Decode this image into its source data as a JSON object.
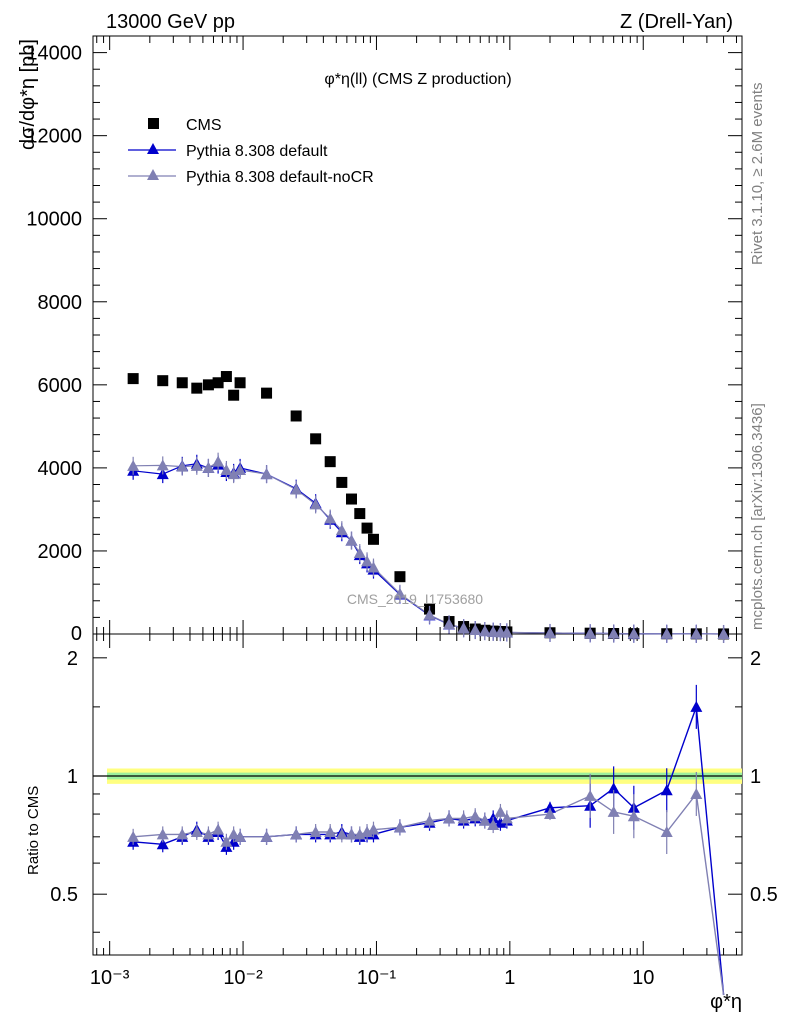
{
  "header": {
    "energy_label": "13000 GeV pp",
    "process_label": "Z (Drell-Yan)"
  },
  "side_text": {
    "rivet": "Rivet 3.1.10, ≥ 2.6M events",
    "mcplots": "mcplots.cern.ch [arXiv:1306.3436]"
  },
  "chart_data": [
    {
      "type": "scatter",
      "title": "φ*η(ll) (CMS Z production)",
      "watermark": "CMS_2019_I1753680",
      "ylabel": "dσ/dφ*η [pb]",
      "xscale": "log",
      "xlim": [
        0.00075,
        55
      ],
      "ylim": [
        0,
        14400
      ],
      "yticks": [
        "2000",
        "4000",
        "6000",
        "8000",
        "10000",
        "12000",
        "14000"
      ],
      "legend_position": "top-left",
      "series": [
        {
          "name": "CMS",
          "color": "#000000",
          "marker": "square",
          "points": [
            [
              0.0015,
              6150
            ],
            [
              0.0025,
              6100
            ],
            [
              0.0035,
              6050
            ],
            [
              0.0045,
              5920
            ],
            [
              0.0055,
              6000
            ],
            [
              0.0065,
              6050
            ],
            [
              0.0075,
              6200
            ],
            [
              0.0085,
              5750
            ],
            [
              0.0095,
              6050
            ],
            [
              0.015,
              5800
            ],
            [
              0.025,
              5250
            ],
            [
              0.035,
              4700
            ],
            [
              0.045,
              4150
            ],
            [
              0.055,
              3650
            ],
            [
              0.065,
              3250
            ],
            [
              0.075,
              2900
            ],
            [
              0.085,
              2550
            ],
            [
              0.095,
              2280
            ],
            [
              0.15,
              1380
            ],
            [
              0.25,
              600
            ],
            [
              0.35,
              300
            ],
            [
              0.45,
              180
            ],
            [
              0.55,
              120
            ],
            [
              0.65,
              90
            ],
            [
              0.75,
              70
            ],
            [
              0.85,
              60
            ],
            [
              0.95,
              50
            ],
            [
              2.0,
              30
            ],
            [
              4.0,
              20
            ],
            [
              6.0,
              12
            ],
            [
              8.5,
              9
            ],
            [
              15,
              6
            ],
            [
              25,
              4
            ],
            [
              40,
              2
            ]
          ]
        },
        {
          "name": "Pythia 8.308 default",
          "color": "#0000cc",
          "marker": "triangle",
          "points": [
            [
              0.0015,
              3930
            ],
            [
              0.0025,
              3850
            ],
            [
              0.0035,
              4050
            ],
            [
              0.0045,
              4100
            ],
            [
              0.0055,
              4000
            ],
            [
              0.0065,
              4080
            ],
            [
              0.0075,
              3900
            ],
            [
              0.0085,
              3880
            ],
            [
              0.0095,
              4000
            ],
            [
              0.015,
              3850
            ],
            [
              0.025,
              3500
            ],
            [
              0.035,
              3150
            ],
            [
              0.045,
              2750
            ],
            [
              0.055,
              2450
            ],
            [
              0.065,
              2250
            ],
            [
              0.075,
              1900
            ],
            [
              0.085,
              1700
            ],
            [
              0.095,
              1550
            ],
            [
              0.15,
              950
            ],
            [
              0.25,
              450
            ],
            [
              0.35,
              230
            ],
            [
              0.45,
              140
            ],
            [
              0.55,
              95
            ],
            [
              0.65,
              70
            ],
            [
              0.75,
              55
            ],
            [
              0.85,
              45
            ],
            [
              0.95,
              38
            ],
            [
              2.0,
              25
            ],
            [
              4.0,
              17
            ],
            [
              6.0,
              11
            ],
            [
              8.5,
              7.5
            ],
            [
              15,
              5.5
            ],
            [
              25,
              5.5
            ],
            [
              40,
              0.5
            ]
          ]
        },
        {
          "name": "Pythia 8.308 default-noCR",
          "color": "#8080b3",
          "marker": "triangle",
          "points": [
            [
              0.0015,
              4050
            ],
            [
              0.0025,
              4060
            ],
            [
              0.0035,
              4030
            ],
            [
              0.0045,
              4050
            ],
            [
              0.0055,
              4000
            ],
            [
              0.0065,
              4150
            ],
            [
              0.0075,
              3950
            ],
            [
              0.0085,
              3850
            ],
            [
              0.0095,
              3950
            ],
            [
              0.015,
              3850
            ],
            [
              0.025,
              3480
            ],
            [
              0.035,
              3120
            ],
            [
              0.045,
              2780
            ],
            [
              0.055,
              2500
            ],
            [
              0.065,
              2250
            ],
            [
              0.075,
              1950
            ],
            [
              0.085,
              1750
            ],
            [
              0.095,
              1600
            ],
            [
              0.15,
              970
            ],
            [
              0.25,
              460
            ],
            [
              0.35,
              235
            ],
            [
              0.45,
              140
            ],
            [
              0.55,
              95
            ],
            [
              0.65,
              70
            ],
            [
              0.75,
              52
            ],
            [
              0.85,
              48
            ],
            [
              0.95,
              40
            ],
            [
              2.0,
              24
            ],
            [
              4.0,
              18
            ],
            [
              6.0,
              10
            ],
            [
              8.5,
              7
            ],
            [
              15,
              4.5
            ],
            [
              25,
              3.5
            ],
            [
              40,
              0.2
            ]
          ]
        }
      ]
    },
    {
      "type": "line",
      "ylabel": "Ratio to CMS",
      "xlabel": "φ*η",
      "xscale": "log",
      "xlim": [
        0.00075,
        55
      ],
      "ylim": [
        0.35,
        2.3
      ],
      "yticks": [
        "0.5",
        "1",
        "2"
      ],
      "xticks": [
        "10⁻³",
        "10⁻²",
        "10⁻¹",
        "1",
        "10"
      ],
      "reference_line": 1.0,
      "uncertainty_band": {
        "inner": 0.02,
        "outer": 0.045,
        "inner_color": "#9cf09c",
        "outer_color": "#ffff80"
      },
      "series": [
        {
          "name": "Pythia 8.308 default",
          "color": "#0000cc",
          "points": [
            [
              0.0015,
              0.68
            ],
            [
              0.0025,
              0.67
            ],
            [
              0.0035,
              0.7
            ],
            [
              0.0045,
              0.73
            ],
            [
              0.0055,
              0.7
            ],
            [
              0.0065,
              0.72
            ],
            [
              0.0075,
              0.66
            ],
            [
              0.0085,
              0.68
            ],
            [
              0.0095,
              0.7
            ],
            [
              0.015,
              0.7
            ],
            [
              0.025,
              0.71
            ],
            [
              0.035,
              0.71
            ],
            [
              0.045,
              0.71
            ],
            [
              0.055,
              0.72
            ],
            [
              0.065,
              0.71
            ],
            [
              0.075,
              0.7
            ],
            [
              0.085,
              0.71
            ],
            [
              0.095,
              0.71
            ],
            [
              0.15,
              0.74
            ],
            [
              0.25,
              0.76
            ],
            [
              0.35,
              0.78
            ],
            [
              0.45,
              0.77
            ],
            [
              0.55,
              0.78
            ],
            [
              0.65,
              0.77
            ],
            [
              0.75,
              0.78
            ],
            [
              0.85,
              0.76
            ],
            [
              0.95,
              0.77
            ],
            [
              2.0,
              0.83
            ],
            [
              4.0,
              0.84
            ],
            [
              6.0,
              0.93
            ],
            [
              8.5,
              0.83
            ],
            [
              15,
              0.92
            ],
            [
              25,
              1.5
            ],
            [
              40,
              0.05
            ]
          ]
        },
        {
          "name": "Pythia 8.308 default-noCR",
          "color": "#8080b3",
          "points": [
            [
              0.0015,
              0.7
            ],
            [
              0.0025,
              0.71
            ],
            [
              0.0035,
              0.71
            ],
            [
              0.0045,
              0.72
            ],
            [
              0.0055,
              0.71
            ],
            [
              0.0065,
              0.73
            ],
            [
              0.0075,
              0.68
            ],
            [
              0.0085,
              0.71
            ],
            [
              0.0095,
              0.7
            ],
            [
              0.015,
              0.7
            ],
            [
              0.025,
              0.71
            ],
            [
              0.035,
              0.72
            ],
            [
              0.045,
              0.72
            ],
            [
              0.055,
              0.71
            ],
            [
              0.065,
              0.71
            ],
            [
              0.075,
              0.71
            ],
            [
              0.085,
              0.72
            ],
            [
              0.095,
              0.73
            ],
            [
              0.15,
              0.74
            ],
            [
              0.25,
              0.77
            ],
            [
              0.35,
              0.78
            ],
            [
              0.45,
              0.78
            ],
            [
              0.55,
              0.79
            ],
            [
              0.65,
              0.77
            ],
            [
              0.75,
              0.75
            ],
            [
              0.85,
              0.81
            ],
            [
              0.95,
              0.78
            ],
            [
              2.0,
              0.8
            ],
            [
              4.0,
              0.89
            ],
            [
              6.0,
              0.81
            ],
            [
              8.5,
              0.79
            ],
            [
              15,
              0.72
            ],
            [
              25,
              0.9
            ],
            [
              40,
              0.05
            ]
          ]
        }
      ]
    }
  ]
}
